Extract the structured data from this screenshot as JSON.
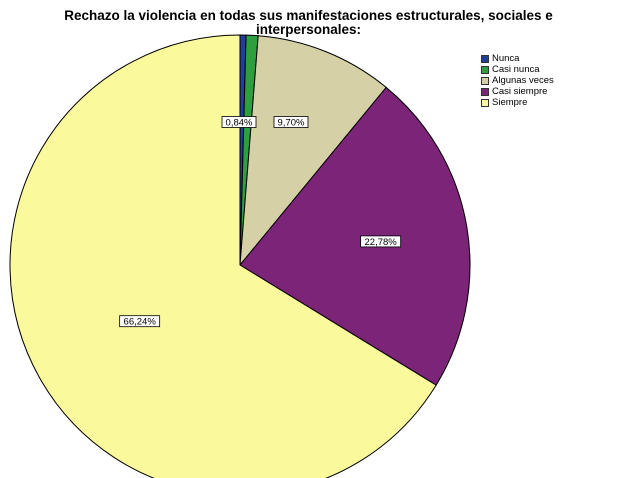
{
  "chart_data": {
    "type": "pie",
    "title": "Rechazo la violencia en todas sus manifestaciones estructurales, sociales e",
    "title_line2": "interpersonales:",
    "categories": [
      "Nunca",
      "Casi nunca",
      "Algunas veces",
      "Casi siempre",
      "Siempre"
    ],
    "values": [
      0.42,
      0.84,
      9.7,
      22.78,
      66.24
    ],
    "data_labels": [
      "",
      "0,84%",
      "9,70%",
      "22,78%",
      "66,24%"
    ],
    "colors": [
      "#1f3f9a",
      "#2e9e3e",
      "#d6d0a6",
      "#7b2478",
      "#fafa9c"
    ],
    "start_angle": "top",
    "direction": "clockwise",
    "legend_position": "top-right"
  }
}
